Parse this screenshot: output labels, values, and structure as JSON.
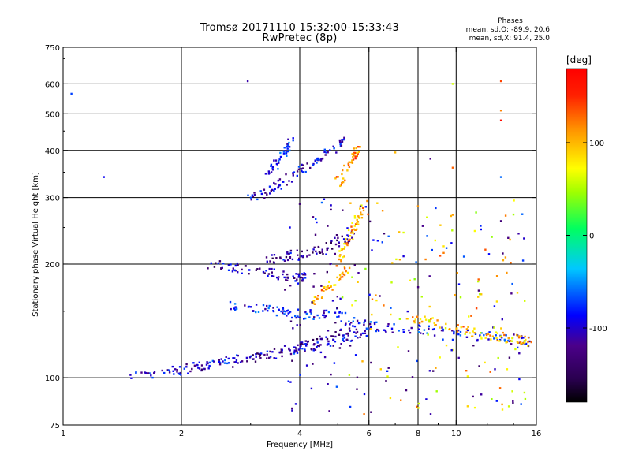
{
  "header": {
    "title_line1": "Tromsø 20171110 15:32:00-15:33:43",
    "title_line2": "RwPretec (8p)"
  },
  "phases_box": {
    "title": "Phases",
    "line_o": "mean, sd,O: -89.9, 20.6",
    "line_x": "mean, sd,X:  91.4, 25.0"
  },
  "colorbar": {
    "unit": "[deg]",
    "ticks": [
      "100",
      "0",
      "-100"
    ],
    "tick_values": [
      100,
      0,
      -100
    ],
    "range": [
      -180,
      180
    ],
    "colormap": "rainbow"
  },
  "chart_data": {
    "type": "scatter",
    "xlabel": "Frequency [MHz]",
    "ylabel": "Stationary phase Virtual Height [km]",
    "x_scale": "log",
    "y_scale": "log",
    "xlim": [
      1,
      16
    ],
    "ylim": [
      75,
      750
    ],
    "x_ticks": [
      1,
      2,
      4,
      6,
      8,
      10,
      16
    ],
    "x_tick_labels": [
      "1",
      "2",
      "4",
      "6",
      "8",
      "10",
      "16"
    ],
    "y_ticks": [
      75,
      100,
      200,
      300,
      400,
      500,
      600,
      750
    ],
    "y_tick_labels": [
      "75",
      "100",
      "200",
      "300",
      "400",
      "500",
      "600",
      "750"
    ],
    "grid_x": [
      2,
      4,
      6,
      8,
      10
    ],
    "grid_y": [
      100,
      200,
      300,
      400,
      500,
      600
    ],
    "color_by": "phase_deg",
    "traces": [
      {
        "f": [
          1.45,
          1.8,
          2.1,
          2.5,
          3.0,
          3.5,
          4.0,
          4.6,
          5.3,
          6.0
        ],
        "h": [
          100,
          103,
          106,
          110,
          113,
          116,
          120,
          123,
          127,
          130
        ],
        "phase": -95
      },
      {
        "f": [
          1.9,
          2.4,
          3.0,
          3.6,
          4.2,
          4.8,
          5.4
        ],
        "h": [
          105,
          108,
          112,
          117,
          122,
          128,
          135
        ],
        "phase": -120
      },
      {
        "f": [
          2.7,
          3.1,
          3.5,
          3.9,
          4.4,
          5.0,
          5.6,
          6.2,
          7.2,
          8.5,
          10.5,
          12.5,
          14.5,
          15.5
        ],
        "h": [
          155,
          152,
          150,
          148,
          147,
          146,
          140,
          137,
          135,
          133,
          130,
          128,
          126,
          124
        ],
        "phase": -85
      },
      {
        "f": [
          2.3,
          2.7,
          3.1,
          3.5,
          3.9,
          4.2
        ],
        "h": [
          200,
          196,
          192,
          188,
          185,
          183
        ],
        "phase": -110
      },
      {
        "f": [
          3.3,
          3.7,
          4.1,
          4.6,
          5.1,
          5.5
        ],
        "h": [
          205,
          210,
          215,
          220,
          230,
          240
        ],
        "phase": -125
      },
      {
        "f": [
          3.0,
          3.3,
          3.6,
          4.0,
          4.4,
          4.8,
          5.2
        ],
        "h": [
          300,
          310,
          330,
          350,
          375,
          400,
          420
        ],
        "phase": -100
      },
      {
        "f": [
          3.3,
          3.5,
          3.7,
          3.8
        ],
        "h": [
          340,
          370,
          400,
          430
        ],
        "phase": -80
      },
      {
        "f": [
          5.0,
          5.2,
          5.4,
          5.6,
          5.8
        ],
        "h": [
          200,
          220,
          240,
          260,
          280
        ],
        "phase": 100
      },
      {
        "f": [
          4.3,
          4.6,
          5.0,
          5.3
        ],
        "h": [
          160,
          170,
          180,
          195
        ],
        "phase": 105
      },
      {
        "f": [
          5.0,
          5.3,
          5.5,
          5.7
        ],
        "h": [
          330,
          360,
          390,
          420
        ],
        "phase": 120
      },
      {
        "f": [
          7.5,
          8.5,
          10.0,
          11.5,
          13.0,
          14.5,
          15.5
        ],
        "h": [
          145,
          140,
          135,
          130,
          128,
          126,
          124
        ],
        "phase": 95
      }
    ],
    "sparse_points": [
      {
        "f": 1.05,
        "h": 565,
        "phase": -70
      },
      {
        "f": 1.27,
        "h": 340,
        "phase": -90
      },
      {
        "f": 2.95,
        "h": 610,
        "phase": -110
      },
      {
        "f": 13.0,
        "h": 610,
        "phase": 140
      },
      {
        "f": 13.0,
        "h": 480,
        "phase": 170
      },
      {
        "f": 13.0,
        "h": 510,
        "phase": 120
      },
      {
        "f": 13.0,
        "h": 340,
        "phase": -60
      },
      {
        "f": 13.0,
        "h": 260,
        "phase": -130
      },
      {
        "f": 9.8,
        "h": 600,
        "phase": 60
      },
      {
        "f": 9.8,
        "h": 360,
        "phase": 130
      },
      {
        "f": 9.8,
        "h": 270,
        "phase": 110
      },
      {
        "f": 8.6,
        "h": 380,
        "phase": -120
      },
      {
        "f": 7.0,
        "h": 395,
        "phase": 100
      },
      {
        "f": 6.3,
        "h": 290,
        "phase": 90
      }
    ]
  }
}
